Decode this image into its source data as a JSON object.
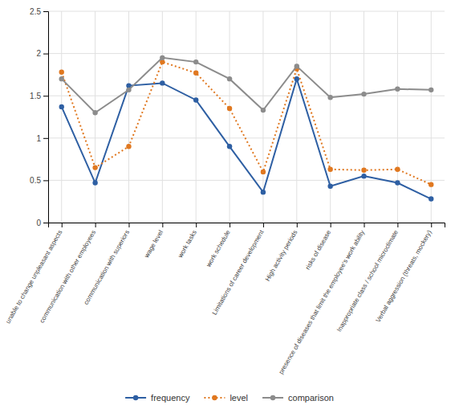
{
  "chart_data": {
    "type": "line",
    "categories": [
      "unable to change unpleasant aspects",
      "communication with other employees",
      "communication with superiors",
      "wage level",
      "work tasks",
      "work schedule",
      "Limitations of career development",
      "High activity periods",
      "risks of disease",
      "presence of diseases that limit the employee’s work ability",
      "Inappropriate class / school microclimate",
      "Verbal aggression (threats, mockery)"
    ],
    "series": [
      {
        "name": "frequency",
        "color": "#2e5fa3",
        "marker": "circle",
        "line_style": "solid",
        "values": [
          1.37,
          0.47,
          1.62,
          1.65,
          1.45,
          0.9,
          0.36,
          1.7,
          0.43,
          0.55,
          0.47,
          0.28
        ]
      },
      {
        "name": "level",
        "color": "#e07820",
        "marker": "circle",
        "line_style": "dotted",
        "values": [
          1.78,
          0.65,
          0.9,
          1.9,
          1.77,
          1.35,
          0.6,
          1.82,
          0.63,
          0.62,
          0.63,
          0.45
        ]
      },
      {
        "name": "comparison",
        "color": "#8c8c8c",
        "marker": "circle",
        "line_style": "solid",
        "values": [
          1.7,
          1.3,
          1.57,
          1.95,
          1.9,
          1.7,
          1.33,
          1.85,
          1.48,
          1.52,
          1.58,
          1.57
        ]
      }
    ],
    "ylim": [
      0,
      2.5
    ],
    "yticks": [
      0,
      0.5,
      1,
      1.5,
      2,
      2.5
    ],
    "grid": true,
    "legend": "bottom"
  }
}
